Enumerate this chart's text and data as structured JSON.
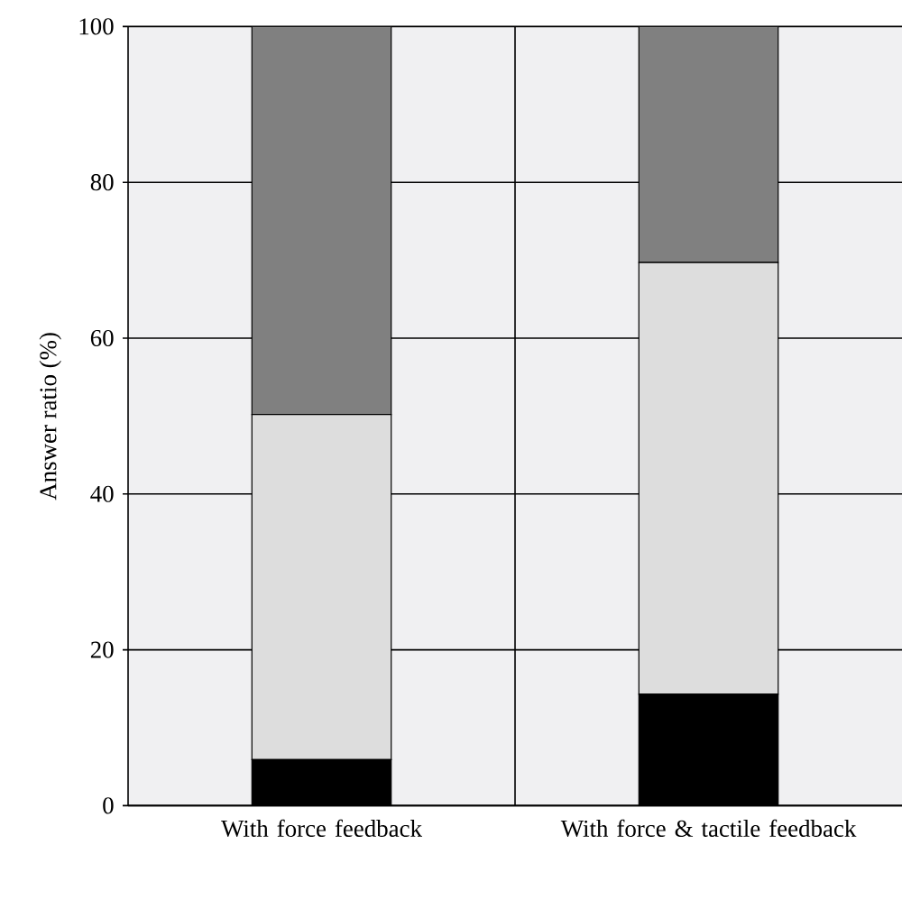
{
  "chart_data": {
    "type": "bar",
    "stacked": true,
    "ylabel": "Answer ratio (%)",
    "categories": [
      "With force feedback",
      "With force & tactile feedback"
    ],
    "series": [
      {
        "color": "#000000",
        "values": [
          5.9,
          14.3
        ]
      },
      {
        "color": "#dddddd",
        "values": [
          44.3,
          55.4
        ]
      },
      {
        "color": "#808080",
        "values": [
          49.8,
          30.3
        ]
      }
    ],
    "ylim": [
      0,
      100
    ],
    "yticks": [
      0,
      20,
      40,
      60,
      80,
      100
    ],
    "grid": true
  }
}
